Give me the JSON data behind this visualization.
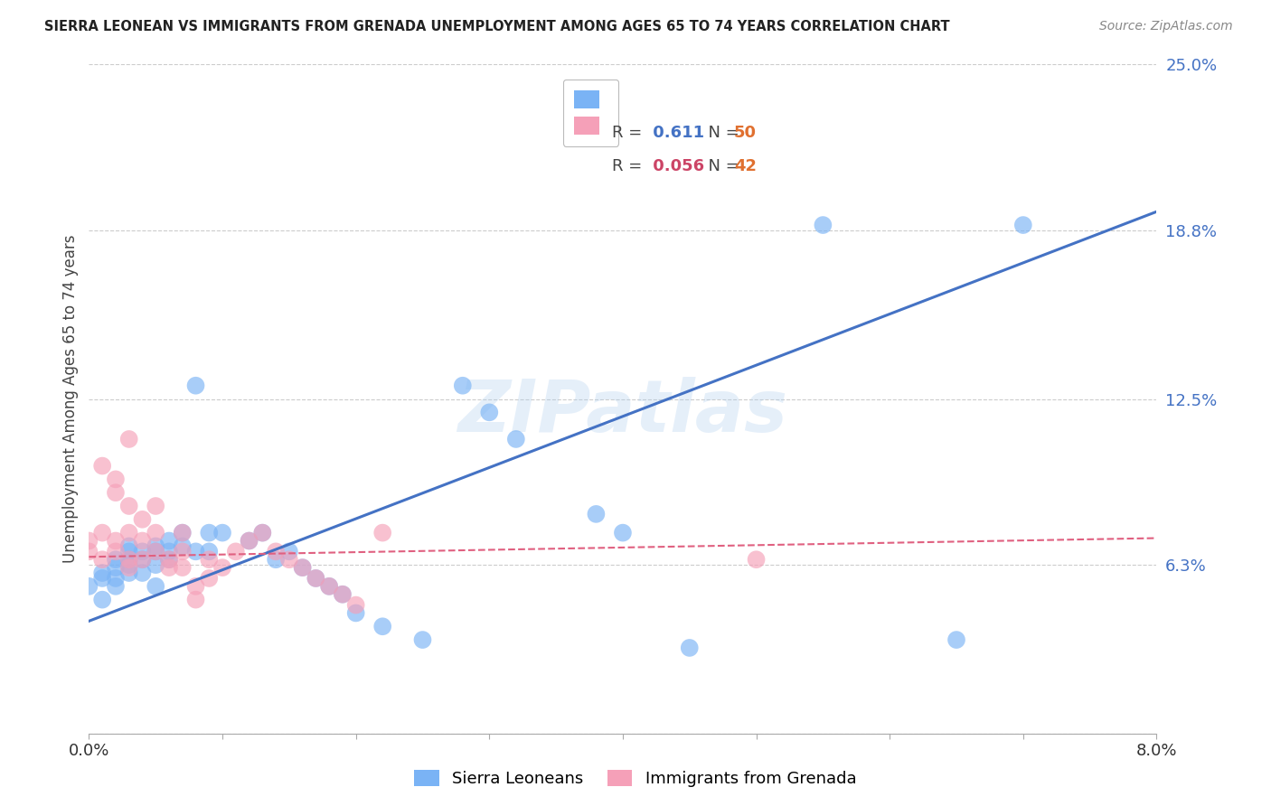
{
  "title": "SIERRA LEONEAN VS IMMIGRANTS FROM GRENADA UNEMPLOYMENT AMONG AGES 65 TO 74 YEARS CORRELATION CHART",
  "source": "Source: ZipAtlas.com",
  "ylabel": "Unemployment Among Ages 65 to 74 years",
  "xmin": 0.0,
  "xmax": 0.08,
  "ymin": 0.0,
  "ymax": 0.25,
  "yticks": [
    0.0,
    0.063,
    0.125,
    0.188,
    0.25
  ],
  "ytick_labels": [
    "",
    "6.3%",
    "12.5%",
    "18.8%",
    "25.0%"
  ],
  "blue_R": "0.611",
  "blue_N": "50",
  "pink_R": "0.056",
  "pink_N": "42",
  "blue_color": "#7ab3f5",
  "pink_color": "#f5a0b8",
  "blue_line_color": "#4472c4",
  "pink_line_color": "#e06080",
  "blue_tick_color": "#4472c4",
  "watermark_text": "ZIPatlas",
  "blue_scatter_x": [
    0.0,
    0.001,
    0.001,
    0.001,
    0.002,
    0.002,
    0.002,
    0.002,
    0.003,
    0.003,
    0.003,
    0.003,
    0.003,
    0.004,
    0.004,
    0.004,
    0.005,
    0.005,
    0.005,
    0.005,
    0.006,
    0.006,
    0.006,
    0.007,
    0.007,
    0.008,
    0.008,
    0.009,
    0.009,
    0.01,
    0.012,
    0.013,
    0.014,
    0.015,
    0.016,
    0.017,
    0.018,
    0.019,
    0.02,
    0.022,
    0.025,
    0.028,
    0.03,
    0.032,
    0.038,
    0.04,
    0.045,
    0.055,
    0.065,
    0.07
  ],
  "blue_scatter_y": [
    0.055,
    0.06,
    0.058,
    0.05,
    0.062,
    0.065,
    0.058,
    0.055,
    0.063,
    0.068,
    0.07,
    0.065,
    0.06,
    0.068,
    0.065,
    0.06,
    0.068,
    0.063,
    0.07,
    0.055,
    0.072,
    0.068,
    0.065,
    0.075,
    0.07,
    0.068,
    0.13,
    0.075,
    0.068,
    0.075,
    0.072,
    0.075,
    0.065,
    0.068,
    0.062,
    0.058,
    0.055,
    0.052,
    0.045,
    0.04,
    0.035,
    0.13,
    0.12,
    0.11,
    0.082,
    0.075,
    0.032,
    0.19,
    0.035,
    0.19
  ],
  "pink_scatter_x": [
    0.0,
    0.0,
    0.001,
    0.001,
    0.001,
    0.002,
    0.002,
    0.002,
    0.002,
    0.003,
    0.003,
    0.003,
    0.003,
    0.004,
    0.004,
    0.004,
    0.005,
    0.005,
    0.005,
    0.006,
    0.006,
    0.007,
    0.007,
    0.007,
    0.008,
    0.008,
    0.009,
    0.009,
    0.01,
    0.011,
    0.012,
    0.013,
    0.014,
    0.015,
    0.016,
    0.017,
    0.018,
    0.019,
    0.02,
    0.022,
    0.05,
    0.003
  ],
  "pink_scatter_y": [
    0.068,
    0.072,
    0.1,
    0.075,
    0.065,
    0.09,
    0.095,
    0.072,
    0.068,
    0.085,
    0.075,
    0.065,
    0.062,
    0.08,
    0.072,
    0.065,
    0.085,
    0.075,
    0.068,
    0.065,
    0.062,
    0.075,
    0.068,
    0.062,
    0.055,
    0.05,
    0.065,
    0.058,
    0.062,
    0.068,
    0.072,
    0.075,
    0.068,
    0.065,
    0.062,
    0.058,
    0.055,
    0.052,
    0.048,
    0.075,
    0.065,
    0.11
  ],
  "blue_trendline_x": [
    0.0,
    0.08
  ],
  "blue_trendline_y": [
    0.042,
    0.195
  ],
  "pink_trendline_x": [
    0.0,
    0.08
  ],
  "pink_trendline_y": [
    0.066,
    0.073
  ],
  "grid_color": "#cccccc",
  "background_color": "#ffffff"
}
